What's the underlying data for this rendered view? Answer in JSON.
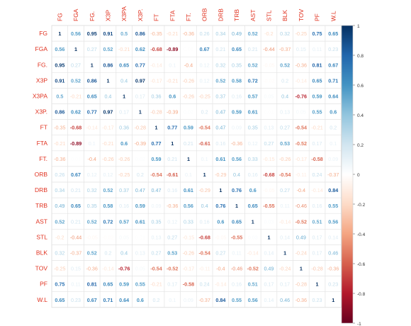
{
  "chart_data": {
    "type": "heatmap",
    "variables": [
      "FG",
      "FGA",
      "FG.",
      "X3P",
      "X3PA",
      "X3P.",
      "FT",
      "FTA",
      "FT.",
      "ORB",
      "DRB",
      "TRB",
      "AST",
      "STL",
      "BLK",
      "TOV",
      "PF",
      "W.L"
    ],
    "matrix": [
      [
        1,
        0.56,
        0.95,
        0.91,
        0.5,
        0.86,
        -0.35,
        -0.21,
        -0.36,
        0.26,
        0.34,
        0.49,
        0.52,
        -0.2,
        0.32,
        -0.25,
        0.75,
        0.65
      ],
      [
        0.56,
        1,
        0.27,
        0.52,
        -0.21,
        0.62,
        -0.68,
        -0.89,
        0.01,
        0.67,
        0.21,
        0.65,
        0.21,
        -0.44,
        -0.37,
        0.15,
        0.11,
        0.23
      ],
      [
        0.95,
        0.27,
        1,
        0.86,
        0.65,
        0.77,
        -0.14,
        0.1,
        -0.4,
        0.12,
        0.32,
        0.35,
        0.52,
        -0.05,
        0.52,
        -0.36,
        0.81,
        0.67
      ],
      [
        0.91,
        0.52,
        0.86,
        1,
        0.4,
        0.97,
        -0.17,
        -0.21,
        -0.26,
        0.12,
        0.52,
        0.58,
        0.72,
        -0.02,
        0.2,
        -0.14,
        0.65,
        0.71
      ],
      [
        0.5,
        -0.21,
        0.65,
        0.4,
        1,
        0.17,
        0.36,
        0.6,
        -0.26,
        -0.25,
        0.37,
        0.16,
        0.57,
        0.05,
        0.4,
        -0.76,
        0.59,
        0.64
      ],
      [
        0.86,
        0.62,
        0.77,
        0.97,
        0.17,
        1,
        -0.28,
        -0.39,
        0.02,
        0.2,
        0.47,
        0.59,
        0.61,
        0.01,
        0.13,
        0.05,
        0.55,
        0.6
      ],
      [
        -0.35,
        -0.68,
        -0.14,
        -0.17,
        0.36,
        -0.28,
        1,
        0.77,
        0.59,
        -0.54,
        0.47,
        0.09,
        0.35,
        0.13,
        0.27,
        -0.54,
        -0.21,
        0.2
      ],
      [
        -0.21,
        -0.89,
        0.1,
        -0.21,
        0.6,
        -0.39,
        0.77,
        1,
        0.21,
        -0.61,
        0.16,
        -0.36,
        0.12,
        0.27,
        0.53,
        -0.52,
        0.17,
        0.1
      ],
      [
        -0.36,
        0.01,
        -0.4,
        -0.26,
        -0.26,
        0.02,
        0.59,
        0.21,
        1,
        0.1,
        0.61,
        0.56,
        0.33,
        -0.15,
        -0.26,
        -0.17,
        -0.58,
        0.09
      ],
      [
        0.26,
        0.67,
        0.12,
        0.12,
        -0.25,
        0.2,
        -0.54,
        -0.61,
        0.1,
        1,
        -0.29,
        0.4,
        0.16,
        -0.68,
        -0.54,
        -0.11,
        0.24,
        -0.37
      ],
      [
        0.34,
        0.21,
        0.32,
        0.52,
        0.37,
        0.47,
        0.47,
        0.16,
        0.61,
        -0.29,
        1,
        0.76,
        0.6,
        -0.05,
        0.27,
        -0.4,
        -0.14,
        0.84
      ],
      [
        0.49,
        0.65,
        0.35,
        0.58,
        0.16,
        0.59,
        0.09,
        -0.36,
        0.56,
        0.4,
        0.76,
        1,
        0.65,
        -0.55,
        0.11,
        -0.46,
        0.16,
        0.55
      ],
      [
        0.52,
        0.21,
        0.52,
        0.72,
        0.57,
        0.61,
        0.35,
        0.12,
        0.33,
        0.16,
        0.6,
        0.65,
        1,
        0.03,
        -0.14,
        -0.52,
        0.51,
        0.56
      ],
      [
        -0.2,
        -0.44,
        -0.05,
        -0.02,
        0.05,
        0.01,
        0.13,
        0.27,
        -0.15,
        -0.68,
        -0.05,
        -0.55,
        0.03,
        1,
        0.14,
        0.49,
        0.17,
        0.14
      ],
      [
        0.32,
        -0.37,
        0.52,
        0.2,
        0.4,
        0.13,
        0.27,
        0.53,
        -0.26,
        -0.54,
        0.27,
        0.11,
        -0.14,
        0.14,
        1,
        -0.24,
        0.17,
        0.46
      ],
      [
        -0.25,
        0.15,
        -0.36,
        -0.14,
        -0.76,
        0.05,
        -0.54,
        -0.52,
        -0.17,
        -0.11,
        -0.4,
        -0.46,
        -0.52,
        0.49,
        -0.24,
        1,
        -0.28,
        -0.36
      ],
      [
        0.75,
        0.11,
        0.81,
        0.65,
        0.59,
        0.55,
        -0.21,
        0.17,
        -0.58,
        0.24,
        -0.14,
        0.16,
        0.51,
        0.17,
        0.17,
        -0.28,
        1,
        0.23
      ],
      [
        0.65,
        0.23,
        0.67,
        0.71,
        0.64,
        0.6,
        0.2,
        0.1,
        0.09,
        -0.37,
        0.84,
        0.55,
        0.56,
        0.14,
        0.46,
        -0.36,
        0.23,
        1
      ]
    ],
    "colorbar": {
      "range": [
        -1,
        1
      ],
      "ticks": [
        -1,
        -0.8,
        -0.6,
        -0.4,
        -0.2,
        0,
        0.2,
        0.4,
        0.6,
        0.8,
        1
      ],
      "low_color": "#67001F",
      "mid_color": "#FFFFFF",
      "high_color": "#053061"
    },
    "label_color": "#E0301E",
    "grid": true
  }
}
